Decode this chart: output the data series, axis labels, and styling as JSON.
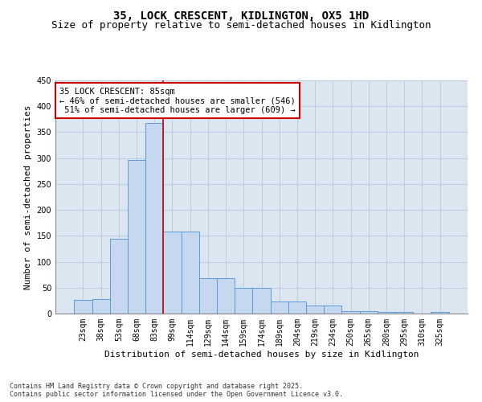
{
  "title_line1": "35, LOCK CRESCENT, KIDLINGTON, OX5 1HD",
  "title_line2": "Size of property relative to semi-detached houses in Kidlington",
  "xlabel": "Distribution of semi-detached houses by size in Kidlington",
  "ylabel": "Number of semi-detached properties",
  "categories": [
    "23sqm",
    "38sqm",
    "53sqm",
    "68sqm",
    "83sqm",
    "99sqm",
    "114sqm",
    "129sqm",
    "144sqm",
    "159sqm",
    "174sqm",
    "189sqm",
    "204sqm",
    "219sqm",
    "234sqm",
    "250sqm",
    "265sqm",
    "280sqm",
    "295sqm",
    "310sqm",
    "325sqm"
  ],
  "values": [
    27,
    28,
    144,
    297,
    368,
    158,
    158,
    68,
    68,
    49,
    49,
    24,
    24,
    15,
    15,
    5,
    5,
    3,
    3,
    0,
    3
  ],
  "bar_color": "#c5d8f0",
  "bar_edge_color": "#5b9bd5",
  "grid_color": "#b8c8dc",
  "background_color": "#dce6f1",
  "annotation_box_text": "35 LOCK CRESCENT: 85sqm\n← 46% of semi-detached houses are smaller (546)\n 51% of semi-detached houses are larger (609) →",
  "annotation_box_color": "#ffffff",
  "annotation_box_edge_color": "#cc0000",
  "vline_x_idx": 4,
  "vline_color": "#cc0000",
  "ylim": [
    0,
    450
  ],
  "yticks": [
    0,
    50,
    100,
    150,
    200,
    250,
    300,
    350,
    400,
    450
  ],
  "footer_text": "Contains HM Land Registry data © Crown copyright and database right 2025.\nContains public sector information licensed under the Open Government Licence v3.0.",
  "title_fontsize": 10,
  "subtitle_fontsize": 9,
  "axis_label_fontsize": 8,
  "tick_fontsize": 7,
  "annotation_fontsize": 7.5,
  "footer_fontsize": 6
}
